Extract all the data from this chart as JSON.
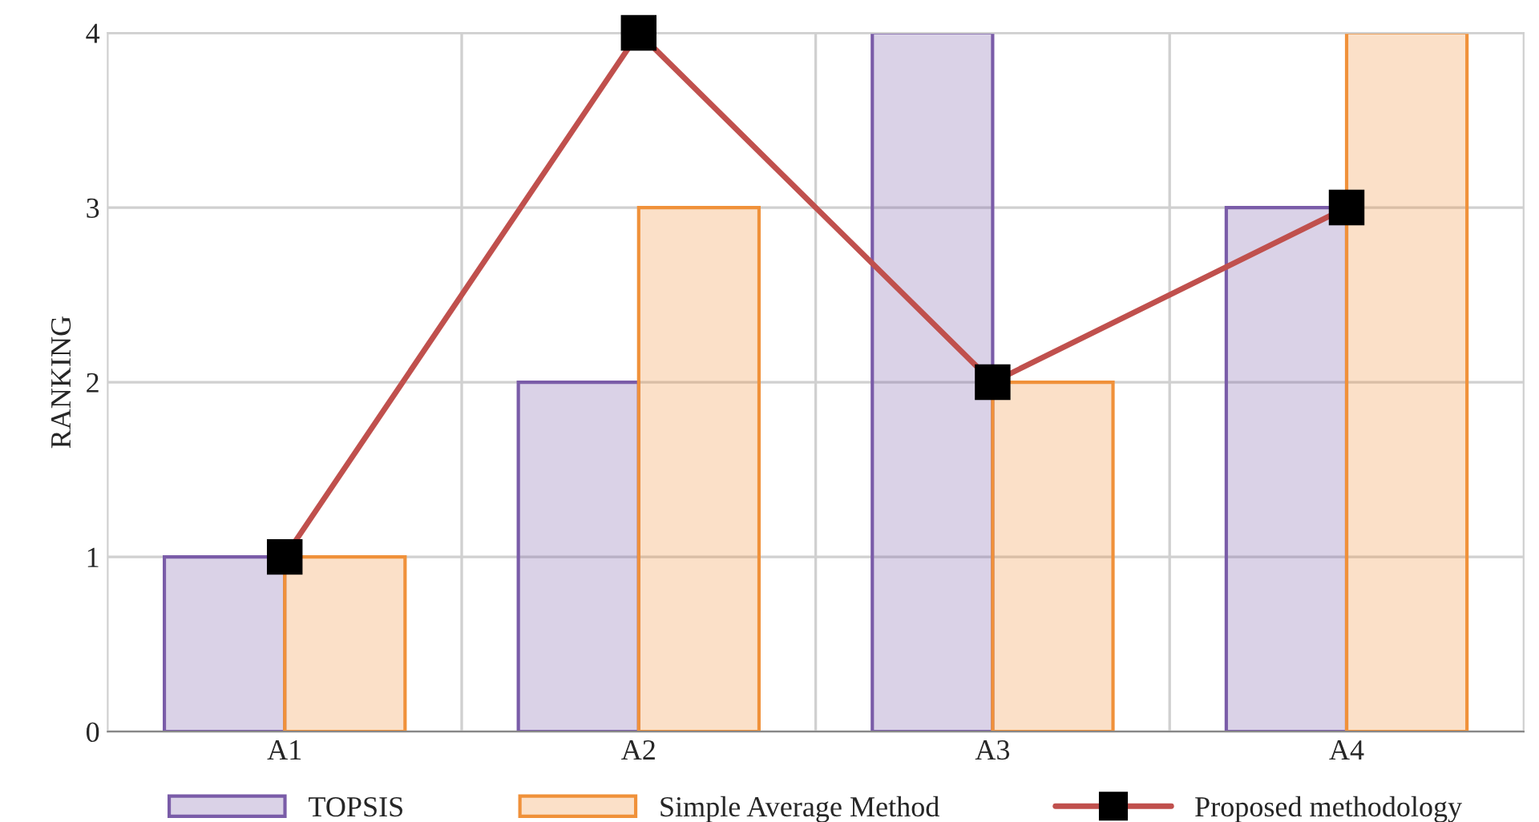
{
  "chart_data": {
    "type": "bar",
    "ylabel": "RANKING",
    "categories": [
      "A1",
      "A2",
      "A3",
      "A4"
    ],
    "series": [
      {
        "name": "TOPSIS",
        "color": "#7a5ca8",
        "values": [
          1,
          2,
          4,
          3
        ]
      },
      {
        "name": "Simple Average Method",
        "color": "#f0913a",
        "values": [
          1,
          3,
          2,
          4
        ]
      },
      {
        "name": "Proposed methodology",
        "type": "line",
        "color": "#c0504d",
        "marker": "square",
        "line_style": "solid",
        "values": [
          1,
          4,
          2,
          3
        ]
      }
    ],
    "ylim": [
      0,
      4
    ],
    "yticks": [
      0,
      1,
      2,
      3,
      4
    ],
    "grid": true,
    "legend": "bottom"
  }
}
